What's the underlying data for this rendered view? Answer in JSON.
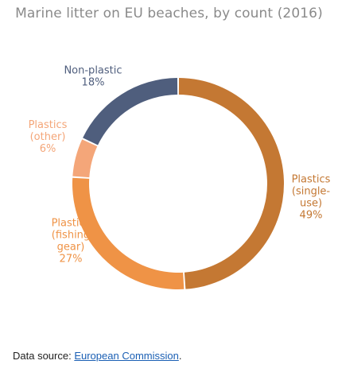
{
  "chart_data": {
    "type": "pie",
    "variant": "donut",
    "title": "Marine litter on EU beaches, by count (2016)",
    "unit": "%",
    "slices": [
      {
        "label": [
          "Plastics",
          "(single-",
          "use)"
        ],
        "value": 49,
        "value_label": "49%",
        "color": "#c47833",
        "label_color": "#c47833"
      },
      {
        "label": [
          "Plastics",
          "(fishing",
          "gear)"
        ],
        "value": 27,
        "value_label": "27%",
        "color": "#ef9346",
        "label_color": "#ef9346"
      },
      {
        "label": [
          "Plastics",
          "(other)"
        ],
        "value": 6,
        "value_label": "6%",
        "color": "#f4a679",
        "label_color": "#f4a679"
      },
      {
        "label": [
          "Non-plastic"
        ],
        "value": 18,
        "value_label": "18%",
        "color": "#4f5e7d",
        "label_color": "#4f5e7d"
      }
    ]
  },
  "footer": {
    "prefix": "Data source: ",
    "link_text": "European Commission",
    "suffix": "."
  }
}
